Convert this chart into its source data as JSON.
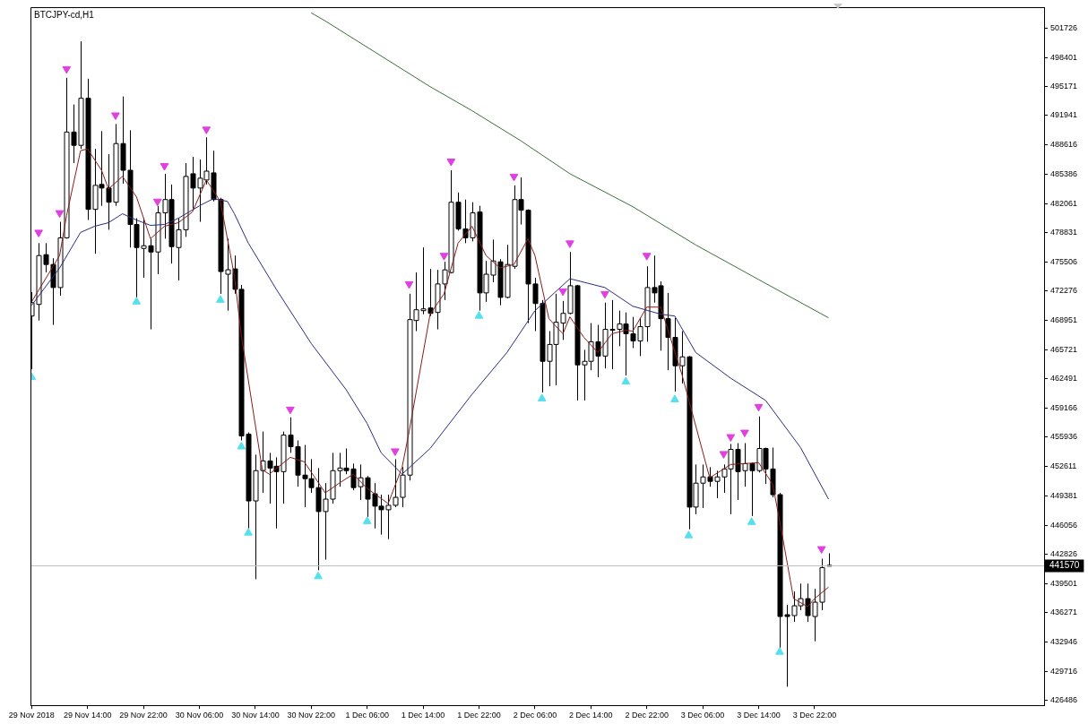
{
  "chart_data": {
    "type": "candlestick",
    "title": "BTCJPY-cd,H1",
    "x": [
      "2018-11-29T06:00",
      "2018-11-29T07:00",
      "2018-11-29T08:00",
      "2018-11-29T09:00",
      "2018-11-29T10:00",
      "2018-11-29T11:00",
      "2018-11-29T12:00",
      "2018-11-29T13:00",
      "2018-11-29T14:00",
      "2018-11-29T15:00",
      "2018-11-29T16:00",
      "2018-11-29T17:00",
      "2018-11-29T18:00",
      "2018-11-29T19:00",
      "2018-11-29T20:00",
      "2018-11-29T21:00",
      "2018-11-29T22:00",
      "2018-11-29T23:00",
      "2018-11-30T00:00",
      "2018-11-30T01:00",
      "2018-11-30T02:00",
      "2018-11-30T03:00",
      "2018-11-30T04:00",
      "2018-11-30T05:00",
      "2018-11-30T06:00",
      "2018-11-30T07:00",
      "2018-11-30T08:00",
      "2018-11-30T09:00",
      "2018-11-30T10:00",
      "2018-11-30T11:00",
      "2018-11-30T12:00",
      "2018-11-30T13:00",
      "2018-11-30T14:00",
      "2018-11-30T15:00",
      "2018-11-30T16:00",
      "2018-11-30T17:00",
      "2018-11-30T18:00",
      "2018-11-30T19:00",
      "2018-11-30T20:00",
      "2018-11-30T21:00",
      "2018-11-30T22:00",
      "2018-11-30T23:00",
      "2018-12-01T00:00",
      "2018-12-01T01:00",
      "2018-12-01T02:00",
      "2018-12-01T03:00",
      "2018-12-01T04:00",
      "2018-12-01T05:00",
      "2018-12-01T06:00",
      "2018-12-01T07:00",
      "2018-12-01T08:00",
      "2018-12-01T09:00",
      "2018-12-01T10:00",
      "2018-12-01T11:00",
      "2018-12-01T12:00",
      "2018-12-01T13:00",
      "2018-12-01T14:00",
      "2018-12-01T15:00",
      "2018-12-01T16:00",
      "2018-12-01T17:00",
      "2018-12-01T18:00",
      "2018-12-01T19:00",
      "2018-12-01T20:00",
      "2018-12-01T21:00",
      "2018-12-01T22:00",
      "2018-12-01T23:00",
      "2018-12-02T00:00",
      "2018-12-02T01:00",
      "2018-12-02T02:00",
      "2018-12-02T03:00",
      "2018-12-02T04:00",
      "2018-12-02T05:00",
      "2018-12-02T06:00",
      "2018-12-02T07:00",
      "2018-12-02T08:00",
      "2018-12-02T09:00",
      "2018-12-02T10:00",
      "2018-12-02T11:00",
      "2018-12-02T12:00",
      "2018-12-02T13:00",
      "2018-12-02T14:00",
      "2018-12-02T15:00",
      "2018-12-02T16:00",
      "2018-12-02T17:00",
      "2018-12-02T18:00",
      "2018-12-02T19:00",
      "2018-12-02T20:00",
      "2018-12-02T21:00",
      "2018-12-02T22:00",
      "2018-12-02T23:00",
      "2018-12-03T00:00",
      "2018-12-03T01:00",
      "2018-12-03T02:00",
      "2018-12-03T03:00",
      "2018-12-03T04:00",
      "2018-12-03T05:00",
      "2018-12-03T06:00",
      "2018-12-03T07:00",
      "2018-12-03T08:00",
      "2018-12-03T09:00",
      "2018-12-03T10:00",
      "2018-12-03T11:00",
      "2018-12-03T12:00",
      "2018-12-03T13:00",
      "2018-12-03T14:00",
      "2018-12-03T15:00",
      "2018-12-03T16:00",
      "2018-12-03T17:00",
      "2018-12-03T18:00",
      "2018-12-03T19:00",
      "2018-12-03T20:00",
      "2018-12-03T21:00",
      "2018-12-03T22:00",
      "2018-12-03T23:00",
      "2018-12-04T00:00"
    ],
    "ohlc": [
      [
        469480,
        472170,
        463510,
        470980
      ],
      [
        470780,
        477640,
        468980,
        476250
      ],
      [
        476350,
        477640,
        474360,
        475250
      ],
      [
        475250,
        475950,
        468490,
        472670
      ],
      [
        472670,
        480030,
        471770,
        478240
      ],
      [
        478240,
        496150,
        478140,
        490080
      ],
      [
        490080,
        493170,
        486600,
        488590
      ],
      [
        488590,
        500230,
        488190,
        493860
      ],
      [
        493860,
        496050,
        480230,
        481420
      ],
      [
        481420,
        488190,
        476450,
        484110
      ],
      [
        484210,
        490180,
        481820,
        483810
      ],
      [
        483810,
        487600,
        479140,
        482220
      ],
      [
        482220,
        490980,
        481820,
        488790
      ],
      [
        488790,
        494060,
        484310,
        485800
      ],
      [
        485800,
        490280,
        477150,
        479730
      ],
      [
        479730,
        480430,
        471570,
        477150
      ],
      [
        477050,
        480430,
        473760,
        477350
      ],
      [
        477350,
        478140,
        467990,
        476650
      ],
      [
        476650,
        481820,
        474160,
        481030
      ],
      [
        481030,
        485410,
        478140,
        482520
      ],
      [
        482520,
        484210,
        475350,
        477250
      ],
      [
        477150,
        480430,
        473460,
        479140
      ],
      [
        479140,
        486600,
        478340,
        485110
      ],
      [
        485410,
        487300,
        481520,
        483810
      ],
      [
        483810,
        487000,
        480030,
        484910
      ],
      [
        484710,
        489490,
        484210,
        485700
      ],
      [
        485510,
        487990,
        482320,
        482520
      ],
      [
        482520,
        482720,
        471970,
        474460
      ],
      [
        474160,
        478140,
        470080,
        474660
      ],
      [
        474760,
        476250,
        471970,
        472470
      ],
      [
        472470,
        472970,
        455550,
        456050
      ],
      [
        456250,
        456450,
        445700,
        448780
      ],
      [
        448780,
        453960,
        440020,
        452170
      ],
      [
        452170,
        456540,
        449680,
        453260
      ],
      [
        453260,
        454160,
        448480,
        452460
      ],
      [
        452660,
        453660,
        445700,
        452060
      ],
      [
        452060,
        456540,
        448480,
        456150
      ],
      [
        456150,
        458140,
        454160,
        454850
      ],
      [
        454850,
        455550,
        450370,
        451670
      ],
      [
        451670,
        455050,
        448090,
        451270
      ],
      [
        451270,
        453460,
        449680,
        450270
      ],
      [
        450270,
        452460,
        441020,
        447590
      ],
      [
        447590,
        450770,
        442210,
        448980
      ],
      [
        448980,
        454160,
        448480,
        452170
      ],
      [
        452170,
        454160,
        450370,
        452460
      ],
      [
        452460,
        454650,
        451770,
        452170
      ],
      [
        452360,
        452960,
        449970,
        450270
      ],
      [
        450370,
        452860,
        448880,
        451370
      ],
      [
        451370,
        451570,
        446990,
        448980
      ],
      [
        449580,
        450770,
        445700,
        448190
      ],
      [
        448190,
        449480,
        445000,
        447790
      ],
      [
        447790,
        449480,
        444500,
        448290
      ],
      [
        448290,
        453460,
        448090,
        449180
      ],
      [
        449180,
        452560,
        448090,
        451670
      ],
      [
        451670,
        471970,
        451070,
        469080
      ],
      [
        468980,
        474360,
        467790,
        470180
      ],
      [
        470080,
        477150,
        469680,
        470280
      ],
      [
        470380,
        474750,
        469480,
        469780
      ],
      [
        469880,
        474650,
        467990,
        473070
      ],
      [
        473070,
        475550,
        471270,
        474650
      ],
      [
        474350,
        485800,
        474250,
        482220
      ],
      [
        482220,
        483310,
        479040,
        479240
      ],
      [
        479240,
        482520,
        477640,
        478240
      ],
      [
        478240,
        482220,
        477840,
        481030
      ],
      [
        481130,
        481820,
        470080,
        472070
      ],
      [
        472070,
        475650,
        471070,
        474160
      ],
      [
        474060,
        478040,
        473260,
        475650
      ],
      [
        475550,
        475850,
        470680,
        471570
      ],
      [
        471570,
        477450,
        471470,
        475250
      ],
      [
        475050,
        484110,
        474760,
        482520
      ],
      [
        482520,
        485010,
        479730,
        481330
      ],
      [
        481330,
        481420,
        468690,
        473070
      ],
      [
        473070,
        473760,
        467790,
        470880
      ],
      [
        470880,
        471270,
        460920,
        464410
      ],
      [
        464410,
        467790,
        461620,
        466300
      ],
      [
        466300,
        471970,
        461720,
        468790
      ],
      [
        468690,
        471170,
        466800,
        469780
      ],
      [
        469780,
        476650,
        469680,
        472870
      ],
      [
        472870,
        472970,
        460030,
        464010
      ],
      [
        464010,
        465700,
        460030,
        464410
      ],
      [
        464410,
        468690,
        463410,
        466600
      ],
      [
        466600,
        468490,
        462620,
        465000
      ],
      [
        465000,
        470980,
        463610,
        467990
      ],
      [
        467890,
        471270,
        463510,
        467990
      ],
      [
        467990,
        470080,
        466100,
        468590
      ],
      [
        468590,
        469880,
        462820,
        467490
      ],
      [
        467490,
        469380,
        465900,
        466690
      ],
      [
        466690,
        469280,
        465000,
        468290
      ],
      [
        468290,
        475050,
        466600,
        472670
      ],
      [
        472670,
        476250,
        470980,
        472070
      ],
      [
        472870,
        473360,
        465600,
        469180
      ],
      [
        469180,
        472070,
        463410,
        467090
      ],
      [
        467090,
        469280,
        461020,
        463910
      ],
      [
        463910,
        467790,
        461920,
        464910
      ],
      [
        464910,
        465000,
        445600,
        448090
      ],
      [
        448090,
        452860,
        447290,
        450770
      ],
      [
        450770,
        452860,
        447990,
        451470
      ],
      [
        451470,
        452560,
        450370,
        450970
      ],
      [
        450970,
        452160,
        449080,
        451470
      ],
      [
        451470,
        452860,
        449680,
        452360
      ],
      [
        452360,
        455150,
        447290,
        454550
      ],
      [
        454550,
        455250,
        448880,
        452060
      ],
      [
        452170,
        455250,
        450370,
        452960
      ],
      [
        452960,
        453060,
        447090,
        452170
      ],
      [
        452170,
        458240,
        451960,
        454650
      ],
      [
        454650,
        454750,
        450670,
        452360
      ],
      [
        452360,
        454750,
        449180,
        449480
      ],
      [
        449480,
        449680,
        432360,
        435840
      ],
      [
        436040,
        437140,
        427980,
        435840
      ],
      [
        435940,
        438630,
        435250,
        437040
      ],
      [
        437040,
        439530,
        436540,
        437840
      ],
      [
        437840,
        439530,
        435250,
        435940
      ],
      [
        435840,
        438930,
        433060,
        437440
      ],
      [
        437440,
        442310,
        436540,
        441320
      ],
      [
        441570,
        442910,
        441570,
        441570
      ]
    ],
    "xlim": [
      "2018-11-29T05:50",
      "2018-12-05T06:50"
    ],
    "xticks": [
      {
        "value": "2018-11-29T06:00",
        "label": "29 Nov 2018"
      },
      {
        "value": "2018-11-29T14:00",
        "label": "29 Nov 14:00"
      },
      {
        "value": "2018-11-29T22:00",
        "label": "29 Nov 22:00"
      },
      {
        "value": "2018-11-30T06:00",
        "label": "30 Nov 06:00"
      },
      {
        "value": "2018-11-30T14:00",
        "label": "30 Nov 14:00"
      },
      {
        "value": "2018-11-30T22:00",
        "label": "30 Nov 22:00"
      },
      {
        "value": "2018-12-01T06:00",
        "label": "1 Dec 06:00"
      },
      {
        "value": "2018-12-01T14:00",
        "label": "1 Dec 14:00"
      },
      {
        "value": "2018-12-01T22:00",
        "label": "1 Dec 22:00"
      },
      {
        "value": "2018-12-02T06:00",
        "label": "2 Dec 06:00"
      },
      {
        "value": "2018-12-02T14:00",
        "label": "2 Dec 14:00"
      },
      {
        "value": "2018-12-02T22:00",
        "label": "2 Dec 22:00"
      },
      {
        "value": "2018-12-03T06:00",
        "label": "3 Dec 06:00"
      },
      {
        "value": "2018-12-03T14:00",
        "label": "3 Dec 14:00"
      },
      {
        "value": "2018-12-03T22:00",
        "label": "3 Dec 22:00"
      }
    ],
    "ylim": [
      425890,
      504020
    ],
    "yticks": [
      501726,
      498401,
      495171,
      491941,
      488616,
      485386,
      482061,
      478831,
      475506,
      472276,
      468951,
      465721,
      462491,
      459166,
      455936,
      452611,
      449381,
      446056,
      442826,
      439501,
      436271,
      432946,
      429716,
      426486
    ],
    "series": [
      {
        "type": "line",
        "color": "#8b1a1a",
        "x": [
          "2018-11-29T06:00",
          "2018-11-29T10:00",
          "2018-11-29T11:00",
          "2018-11-29T13:00",
          "2018-11-29T14:00",
          "2018-11-29T16:00",
          "2018-11-29T17:00",
          "2018-11-29T19:00",
          "2018-11-29T21:00",
          "2018-11-29T23:00",
          "2018-11-30T01:00",
          "2018-11-30T03:00",
          "2018-11-30T05:00",
          "2018-11-30T07:00",
          "2018-11-30T09:00",
          "2018-11-30T11:00",
          "2018-11-30T12:00",
          "2018-11-30T15:00",
          "2018-11-30T16:00",
          "2018-11-30T19:00",
          "2018-11-30T21:00",
          "2018-12-01T00:00",
          "2018-12-01T02:00",
          "2018-12-01T04:00",
          "2018-12-01T06:00",
          "2018-12-01T09:00",
          "2018-12-01T11:00",
          "2018-12-01T12:00",
          "2018-12-01T15:00",
          "2018-12-01T17:00",
          "2018-12-01T19:00",
          "2018-12-01T21:00",
          "2018-12-01T23:00",
          "2018-12-02T01:00",
          "2018-12-02T03:00",
          "2018-12-02T05:00",
          "2018-12-02T06:00",
          "2018-12-02T08:00",
          "2018-12-02T10:00",
          "2018-12-02T11:00",
          "2018-12-02T13:00",
          "2018-12-02T15:00",
          "2018-12-02T17:00",
          "2018-12-02T19:00",
          "2018-12-02T20:00",
          "2018-12-02T22:00",
          "2018-12-03T00:00",
          "2018-12-03T03:00",
          "2018-12-03T07:00",
          "2018-12-03T10:00",
          "2018-12-03T14:00",
          "2018-12-03T16:00",
          "2018-12-03T17:00",
          "2018-12-03T19:00",
          "2018-12-03T21:00",
          "2018-12-03T22:00",
          "2018-12-04T00:00"
        ],
        "values": [
          471070,
          476250,
          480730,
          487990,
          488190,
          485800,
          483710,
          485110,
          482820,
          478140,
          479530,
          479930,
          481130,
          484710,
          482320,
          474000,
          467290,
          452270,
          451770,
          453660,
          453160,
          449680,
          450770,
          451770,
          450180,
          448480,
          452560,
          456540,
          469680,
          471970,
          477640,
          479530,
          476250,
          474860,
          475250,
          478140,
          476250,
          469180,
          467490,
          469380,
          467090,
          465400,
          467490,
          467890,
          467790,
          470480,
          470480,
          463010,
          451370,
          452860,
          453060,
          450670,
          446590,
          437840,
          436940,
          437840,
          439130
        ]
      },
      {
        "type": "line",
        "color": "#2b2b80",
        "x": [
          "2018-11-29T06:00",
          "2018-11-29T10:00",
          "2018-11-29T13:00",
          "2018-11-29T15:00",
          "2018-11-29T17:00",
          "2018-11-29T19:00",
          "2018-11-29T21:00",
          "2018-11-29T23:00",
          "2018-11-30T01:00",
          "2018-11-30T03:00",
          "2018-11-30T06:00",
          "2018-11-30T08:00",
          "2018-11-30T10:00",
          "2018-11-30T11:00",
          "2018-11-30T13:00",
          "2018-11-30T17:00",
          "2018-11-30T22:00",
          "2018-12-01T03:00",
          "2018-12-01T06:00",
          "2018-12-01T08:00",
          "2018-12-01T11:00",
          "2018-12-01T15:00",
          "2018-12-01T21:00",
          "2018-12-02T02:00",
          "2018-12-02T06:00",
          "2018-12-02T11:00",
          "2018-12-02T16:00",
          "2018-12-02T20:00",
          "2018-12-03T00:00",
          "2018-12-03T02:00",
          "2018-12-03T05:00",
          "2018-12-03T10:00",
          "2018-12-03T15:00",
          "2018-12-03T20:00",
          "2018-12-04T00:00"
        ],
        "values": [
          470680,
          474860,
          478840,
          479530,
          479930,
          480930,
          480230,
          479630,
          479730,
          480430,
          481820,
          482620,
          482320,
          480930,
          477640,
          472470,
          466400,
          461220,
          457440,
          454160,
          451770,
          454650,
          460720,
          465400,
          470080,
          473660,
          472670,
          470580,
          469680,
          469480,
          465400,
          462520,
          460030,
          454750,
          448980
        ]
      },
      {
        "type": "line",
        "color": "#3c6e3c",
        "x": [
          "2018-11-30T22:00",
          "2018-12-01T00:00",
          "2018-12-01T15:00",
          "2018-12-01T21:00",
          "2018-12-02T04:00",
          "2018-12-02T11:00",
          "2018-12-02T20:00",
          "2018-12-03T05:00",
          "2018-12-03T14:00",
          "2018-12-04T00:00"
        ],
        "values": [
          503420,
          502520,
          495160,
          492470,
          489090,
          485410,
          481720,
          477440,
          473560,
          469280
        ]
      },
      {
        "type": "scatter",
        "color": "#e040e0",
        "marker": "triangle",
        "x": [
          "2018-11-29T07:00",
          "2018-11-29T10:00",
          "2018-11-29T11:00",
          "2018-11-29T18:00",
          "2018-11-30T00:00",
          "2018-11-30T01:00",
          "2018-11-30T07:00",
          "2018-11-30T19:00",
          "2018-12-01T10:00",
          "2018-12-01T12:00",
          "2018-12-01T17:00",
          "2018-12-01T18:00",
          "2018-12-02T03:00",
          "2018-12-02T10:00",
          "2018-12-02T11:00",
          "2018-12-02T16:00",
          "2018-12-02T22:00",
          "2018-12-03T09:00",
          "2018-12-03T10:00",
          "2018-12-03T12:00",
          "2018-12-03T14:00",
          "2018-12-03T23:00"
        ],
        "values": [
          478840,
          481030,
          497150,
          491970,
          482320,
          486300,
          490380,
          459030,
          454360,
          473070,
          476250,
          486800,
          485110,
          472270,
          477640,
          471970,
          476250,
          454060,
          455950,
          456450,
          459330,
          443410
        ]
      },
      {
        "type": "scatter",
        "color": "#55e0ee",
        "marker": "triangle",
        "x": [
          "2018-11-29T06:00",
          "2018-11-29T21:00",
          "2018-11-30T09:00",
          "2018-11-30T12:00",
          "2018-11-30T13:00",
          "2018-11-30T23:00",
          "2018-12-01T06:00",
          "2018-12-01T22:00",
          "2018-12-02T07:00",
          "2018-12-02T19:00",
          "2018-12-03T02:00",
          "2018-12-03T04:00",
          "2018-12-03T13:00",
          "2018-12-03T17:00"
        ],
        "values": [
          462620,
          471070,
          471270,
          454850,
          445200,
          440320,
          446490,
          469480,
          460230,
          462120,
          460130,
          444900,
          446390,
          431860
        ]
      }
    ],
    "ref_lines": [
      {
        "axis": "y",
        "value": 441570,
        "label": "441570",
        "color": "#c0c0c0"
      }
    ]
  }
}
